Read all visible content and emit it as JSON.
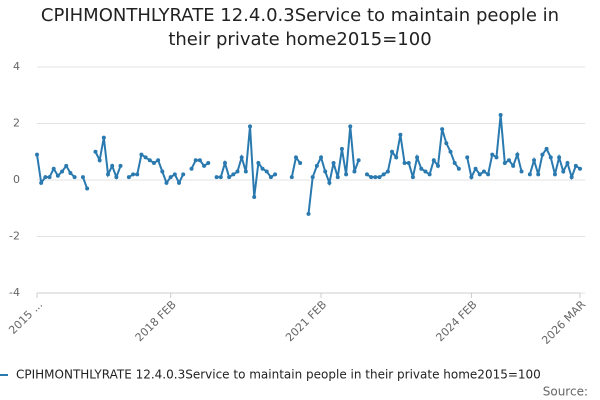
{
  "chart_data": {
    "type": "line",
    "title": "CPIHMONTHLYRATE 12.4.0.3Service to maintain people in their private home2015=100",
    "categories": [
      "2015 ...",
      null,
      null,
      null,
      null,
      null,
      null,
      null,
      null,
      null,
      null,
      null,
      null,
      null,
      null,
      null,
      null,
      null,
      null,
      null,
      null,
      null,
      null,
      null,
      null,
      null,
      null,
      null,
      null,
      null,
      null,
      null,
      "2018 FEB",
      null,
      null,
      null,
      null,
      null,
      null,
      null,
      null,
      null,
      null,
      null,
      null,
      null,
      null,
      null,
      null,
      null,
      null,
      null,
      null,
      null,
      null,
      null,
      null,
      null,
      null,
      null,
      null,
      null,
      null,
      null,
      null,
      null,
      null,
      null,
      "2021 FEB",
      null,
      null,
      null,
      null,
      null,
      null,
      null,
      null,
      null,
      null,
      null,
      null,
      null,
      null,
      null,
      null,
      null,
      null,
      null,
      null,
      null,
      null,
      null,
      null,
      null,
      null,
      null,
      null,
      null,
      null,
      null,
      null,
      null,
      null,
      null,
      "2024 FEB",
      null,
      null,
      null,
      null,
      null,
      null,
      null,
      null,
      null,
      null,
      null,
      null,
      null,
      null,
      null,
      null,
      null,
      null,
      null,
      null,
      null,
      null,
      null,
      null,
      null,
      "2026 MAR"
    ],
    "series": [
      {
        "name": "CPIHMONTHLYRATE 12.4.0.3Service to maintain people in their private home2015=100",
        "color": "#2a7ab0",
        "values": [
          0.9,
          -0.1,
          0.1,
          0.1,
          0.4,
          0.15,
          0.3,
          0.5,
          0.25,
          0.1,
          null,
          0.1,
          -0.3,
          null,
          1.0,
          0.7,
          1.5,
          0.2,
          0.5,
          0.1,
          0.5,
          null,
          0.1,
          0.2,
          0.2,
          0.9,
          0.8,
          0.7,
          0.6,
          0.7,
          0.3,
          -0.1,
          0.1,
          0.2,
          -0.1,
          0.2,
          null,
          0.4,
          0.7,
          0.7,
          0.5,
          0.6,
          null,
          0.1,
          0.1,
          0.6,
          0.1,
          0.2,
          0.3,
          0.8,
          0.3,
          1.9,
          -0.6,
          0.6,
          0.4,
          0.3,
          0.1,
          0.2,
          null,
          null,
          null,
          0.1,
          0.8,
          0.6,
          null,
          -1.2,
          0.1,
          0.5,
          0.8,
          0.3,
          -0.1,
          0.6,
          0.1,
          1.1,
          0.2,
          1.9,
          0.3,
          0.7,
          null,
          0.2,
          0.1,
          0.1,
          0.1,
          0.2,
          0.3,
          1.0,
          0.8,
          1.6,
          0.6,
          0.6,
          0.1,
          0.8,
          0.4,
          0.3,
          0.2,
          0.7,
          0.5,
          1.8,
          1.3,
          1.0,
          0.6,
          0.4,
          null,
          0.8,
          0.1,
          0.4,
          0.2,
          0.3,
          0.2,
          0.9,
          0.8,
          2.3,
          0.6,
          0.7,
          0.5,
          0.9,
          0.3,
          null,
          0.2,
          0.7,
          0.2,
          0.9,
          1.1,
          0.8,
          0.2,
          0.8,
          0.3,
          0.6,
          0.1,
          0.5,
          0.4
        ]
      }
    ],
    "ylim": [
      -4,
      4
    ],
    "yticks": [
      -4,
      -2,
      0,
      2,
      4
    ],
    "grid": true,
    "source": "Source:"
  }
}
